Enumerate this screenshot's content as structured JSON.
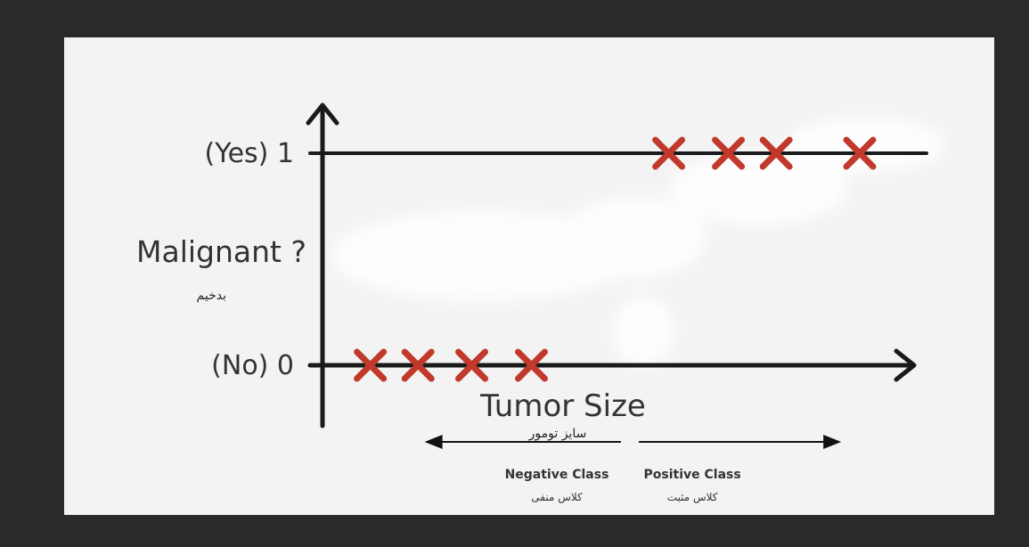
{
  "chart_data": {
    "type": "scatter",
    "title": "",
    "xlabel": "Tumor Size",
    "xlabel_sub": "سایز تومور",
    "ylabel": "Malignant ?",
    "ylabel_sub": "بدخیم",
    "y_ticks": [
      {
        "value": 0,
        "label": "(No) 0"
      },
      {
        "value": 1,
        "label": "(Yes) 1"
      }
    ],
    "x_range": [
      0,
      10
    ],
    "y_range": [
      -0.25,
      1.3
    ],
    "series": [
      {
        "values": [
          {
            "x": 0.8,
            "y": 0
          },
          {
            "x": 1.6,
            "y": 0
          },
          {
            "x": 2.5,
            "y": 0
          },
          {
            "x": 3.5,
            "y": 0
          },
          {
            "x": 5.8,
            "y": 1
          },
          {
            "x": 6.8,
            "y": 1
          },
          {
            "x": 7.6,
            "y": 1
          },
          {
            "x": 9.0,
            "y": 1
          }
        ]
      }
    ],
    "regions": [
      {
        "label": "Negative Class",
        "sub": "کلاس منفی",
        "x_from": 1.8,
        "x_to": 5.0,
        "direction": "left"
      },
      {
        "label": "Positive Class",
        "sub": "کلاس مثبت",
        "x_from": 5.3,
        "x_to": 8.6,
        "direction": "right"
      }
    ],
    "marker_color": "#c0392b",
    "axis_color": "#1a1a1a",
    "grid": false,
    "legend": "none"
  }
}
